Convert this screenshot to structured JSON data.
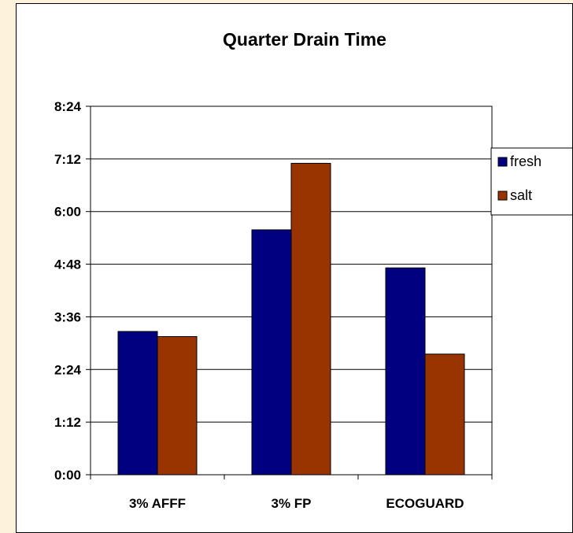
{
  "chart_data": {
    "type": "bar",
    "title": "Quarter Drain Time",
    "xlabel": "",
    "ylabel": "",
    "categories": [
      "3% AFFF",
      "3% FP",
      "ECOGUARD"
    ],
    "series": [
      {
        "name": "fresh",
        "color": "#000080",
        "values": [
          196,
          335,
          283
        ]
      },
      {
        "name": "salt",
        "color": "#993300",
        "values": [
          189,
          426,
          165
        ]
      }
    ],
    "value_unit": "seconds",
    "ylim": [
      0,
      504
    ],
    "y_ticks": [
      0,
      72,
      144,
      216,
      288,
      360,
      432,
      504
    ],
    "y_tick_labels": [
      "0:00",
      "1:12",
      "2:24",
      "3:36",
      "4:48",
      "6:00",
      "7:12",
      "8:24"
    ],
    "grid": true,
    "legend_position": "right",
    "legend_labels": [
      "fresh",
      "salt"
    ]
  }
}
